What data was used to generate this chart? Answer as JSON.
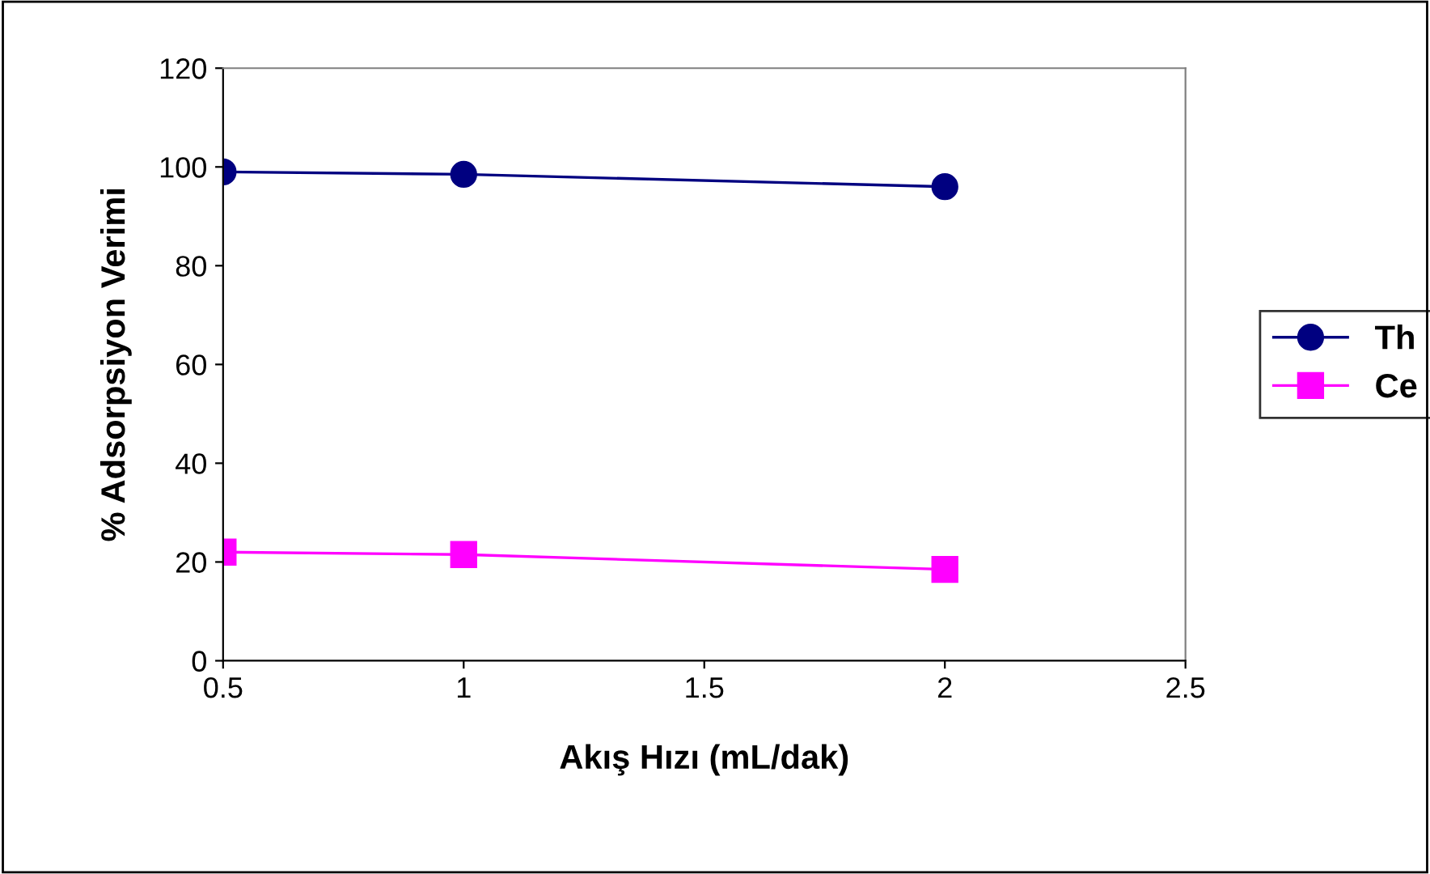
{
  "chart_data": {
    "type": "line",
    "xlabel": "Akış Hızı (mL/dak)",
    "ylabel": "% Adsorpsiyon Verimi",
    "x": [
      0.5,
      1,
      2
    ],
    "series": [
      {
        "name": "Th",
        "color": "#000080",
        "marker": "circle",
        "values": [
          99,
          98.5,
          96
        ]
      },
      {
        "name": "Ce",
        "color": "#ff00ff",
        "marker": "square",
        "values": [
          22,
          21.5,
          18.5
        ]
      }
    ],
    "xlim": [
      0.5,
      2.5
    ],
    "xticks": [
      0.5,
      1,
      1.5,
      2,
      2.5
    ],
    "ylim": [
      0,
      120
    ],
    "yticks": [
      0,
      20,
      40,
      60,
      80,
      100,
      120
    ],
    "grid": false,
    "legend": "right"
  }
}
